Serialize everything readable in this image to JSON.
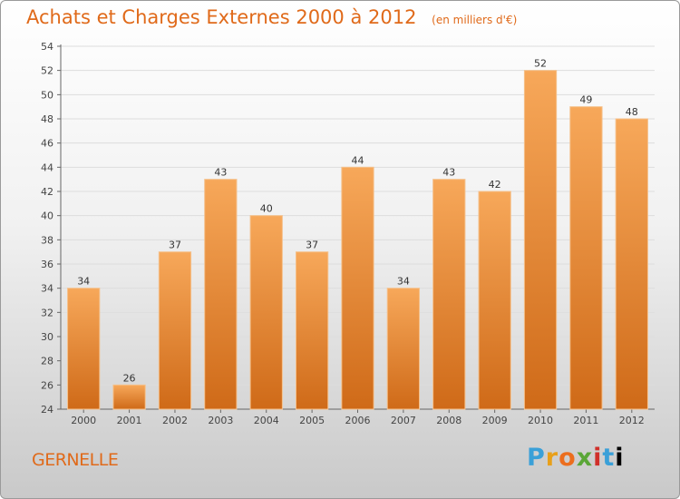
{
  "header": {
    "title": "Achats et Charges Externes 2000 à 2012",
    "subtitle": "(en milliers d'€)"
  },
  "footer": {
    "location": "GERNELLE",
    "brand_letters": [
      "P",
      "r",
      "o",
      "x",
      "i",
      "t",
      "i"
    ]
  },
  "colors": {
    "bar_top": "#f7a85a",
    "bar_bottom": "#cf6a18",
    "title": "#e06a1a",
    "grid": "#dddddd"
  },
  "chart_data": {
    "type": "bar",
    "title": "Achats et Charges Externes 2000 à 2012",
    "subtitle": "(en milliers d'€)",
    "categories": [
      "2000",
      "2001",
      "2002",
      "2003",
      "2004",
      "2005",
      "2006",
      "2007",
      "2008",
      "2009",
      "2010",
      "2011",
      "2012"
    ],
    "values": [
      34,
      26,
      37,
      43,
      40,
      37,
      44,
      34,
      43,
      42,
      52,
      49,
      48
    ],
    "xlabel": "",
    "ylabel": "",
    "ylim": [
      24,
      54
    ],
    "yticks": [
      24,
      26,
      28,
      30,
      32,
      34,
      36,
      38,
      40,
      42,
      44,
      46,
      48,
      50,
      52,
      54
    ],
    "grid": true,
    "legend": "none"
  }
}
